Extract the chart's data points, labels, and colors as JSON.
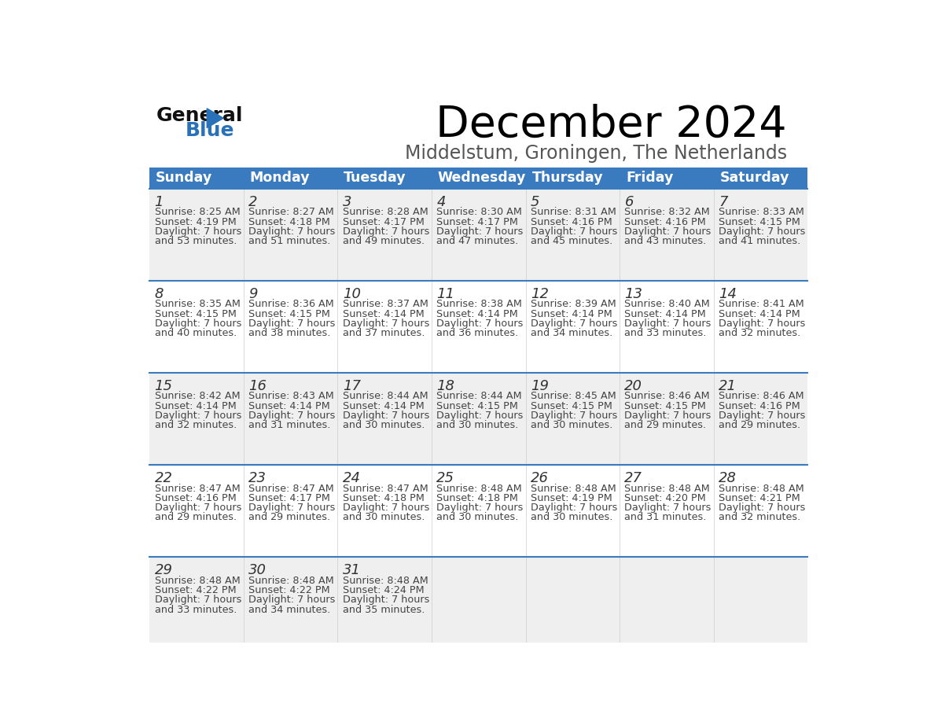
{
  "title": "December 2024",
  "subtitle": "Middelstum, Groningen, The Netherlands",
  "days_of_week": [
    "Sunday",
    "Monday",
    "Tuesday",
    "Wednesday",
    "Thursday",
    "Friday",
    "Saturday"
  ],
  "header_bg": "#3a7abf",
  "header_text": "#ffffff",
  "row_bg_odd": "#efefef",
  "row_bg_even": "#ffffff",
  "separator_color": "#3a7abf",
  "cell_text_color": "#444444",
  "day_number_color": "#333333",
  "calendar_data": [
    [
      {
        "day": 1,
        "sunrise": "8:25 AM",
        "sunset": "4:19 PM",
        "dl1": "Daylight: 7 hours",
        "dl2": "and 53 minutes."
      },
      {
        "day": 2,
        "sunrise": "8:27 AM",
        "sunset": "4:18 PM",
        "dl1": "Daylight: 7 hours",
        "dl2": "and 51 minutes."
      },
      {
        "day": 3,
        "sunrise": "8:28 AM",
        "sunset": "4:17 PM",
        "dl1": "Daylight: 7 hours",
        "dl2": "and 49 minutes."
      },
      {
        "day": 4,
        "sunrise": "8:30 AM",
        "sunset": "4:17 PM",
        "dl1": "Daylight: 7 hours",
        "dl2": "and 47 minutes."
      },
      {
        "day": 5,
        "sunrise": "8:31 AM",
        "sunset": "4:16 PM",
        "dl1": "Daylight: 7 hours",
        "dl2": "and 45 minutes."
      },
      {
        "day": 6,
        "sunrise": "8:32 AM",
        "sunset": "4:16 PM",
        "dl1": "Daylight: 7 hours",
        "dl2": "and 43 minutes."
      },
      {
        "day": 7,
        "sunrise": "8:33 AM",
        "sunset": "4:15 PM",
        "dl1": "Daylight: 7 hours",
        "dl2": "and 41 minutes."
      }
    ],
    [
      {
        "day": 8,
        "sunrise": "8:35 AM",
        "sunset": "4:15 PM",
        "dl1": "Daylight: 7 hours",
        "dl2": "and 40 minutes."
      },
      {
        "day": 9,
        "sunrise": "8:36 AM",
        "sunset": "4:15 PM",
        "dl1": "Daylight: 7 hours",
        "dl2": "and 38 minutes."
      },
      {
        "day": 10,
        "sunrise": "8:37 AM",
        "sunset": "4:14 PM",
        "dl1": "Daylight: 7 hours",
        "dl2": "and 37 minutes."
      },
      {
        "day": 11,
        "sunrise": "8:38 AM",
        "sunset": "4:14 PM",
        "dl1": "Daylight: 7 hours",
        "dl2": "and 36 minutes."
      },
      {
        "day": 12,
        "sunrise": "8:39 AM",
        "sunset": "4:14 PM",
        "dl1": "Daylight: 7 hours",
        "dl2": "and 34 minutes."
      },
      {
        "day": 13,
        "sunrise": "8:40 AM",
        "sunset": "4:14 PM",
        "dl1": "Daylight: 7 hours",
        "dl2": "and 33 minutes."
      },
      {
        "day": 14,
        "sunrise": "8:41 AM",
        "sunset": "4:14 PM",
        "dl1": "Daylight: 7 hours",
        "dl2": "and 32 minutes."
      }
    ],
    [
      {
        "day": 15,
        "sunrise": "8:42 AM",
        "sunset": "4:14 PM",
        "dl1": "Daylight: 7 hours",
        "dl2": "and 32 minutes."
      },
      {
        "day": 16,
        "sunrise": "8:43 AM",
        "sunset": "4:14 PM",
        "dl1": "Daylight: 7 hours",
        "dl2": "and 31 minutes."
      },
      {
        "day": 17,
        "sunrise": "8:44 AM",
        "sunset": "4:14 PM",
        "dl1": "Daylight: 7 hours",
        "dl2": "and 30 minutes."
      },
      {
        "day": 18,
        "sunrise": "8:44 AM",
        "sunset": "4:15 PM",
        "dl1": "Daylight: 7 hours",
        "dl2": "and 30 minutes."
      },
      {
        "day": 19,
        "sunrise": "8:45 AM",
        "sunset": "4:15 PM",
        "dl1": "Daylight: 7 hours",
        "dl2": "and 30 minutes."
      },
      {
        "day": 20,
        "sunrise": "8:46 AM",
        "sunset": "4:15 PM",
        "dl1": "Daylight: 7 hours",
        "dl2": "and 29 minutes."
      },
      {
        "day": 21,
        "sunrise": "8:46 AM",
        "sunset": "4:16 PM",
        "dl1": "Daylight: 7 hours",
        "dl2": "and 29 minutes."
      }
    ],
    [
      {
        "day": 22,
        "sunrise": "8:47 AM",
        "sunset": "4:16 PM",
        "dl1": "Daylight: 7 hours",
        "dl2": "and 29 minutes."
      },
      {
        "day": 23,
        "sunrise": "8:47 AM",
        "sunset": "4:17 PM",
        "dl1": "Daylight: 7 hours",
        "dl2": "and 29 minutes."
      },
      {
        "day": 24,
        "sunrise": "8:47 AM",
        "sunset": "4:18 PM",
        "dl1": "Daylight: 7 hours",
        "dl2": "and 30 minutes."
      },
      {
        "day": 25,
        "sunrise": "8:48 AM",
        "sunset": "4:18 PM",
        "dl1": "Daylight: 7 hours",
        "dl2": "and 30 minutes."
      },
      {
        "day": 26,
        "sunrise": "8:48 AM",
        "sunset": "4:19 PM",
        "dl1": "Daylight: 7 hours",
        "dl2": "and 30 minutes."
      },
      {
        "day": 27,
        "sunrise": "8:48 AM",
        "sunset": "4:20 PM",
        "dl1": "Daylight: 7 hours",
        "dl2": "and 31 minutes."
      },
      {
        "day": 28,
        "sunrise": "8:48 AM",
        "sunset": "4:21 PM",
        "dl1": "Daylight: 7 hours",
        "dl2": "and 32 minutes."
      }
    ],
    [
      {
        "day": 29,
        "sunrise": "8:48 AM",
        "sunset": "4:22 PM",
        "dl1": "Daylight: 7 hours",
        "dl2": "and 33 minutes."
      },
      {
        "day": 30,
        "sunrise": "8:48 AM",
        "sunset": "4:22 PM",
        "dl1": "Daylight: 7 hours",
        "dl2": "and 34 minutes."
      },
      {
        "day": 31,
        "sunrise": "8:48 AM",
        "sunset": "4:24 PM",
        "dl1": "Daylight: 7 hours",
        "dl2": "and 35 minutes."
      },
      null,
      null,
      null,
      null
    ]
  ]
}
